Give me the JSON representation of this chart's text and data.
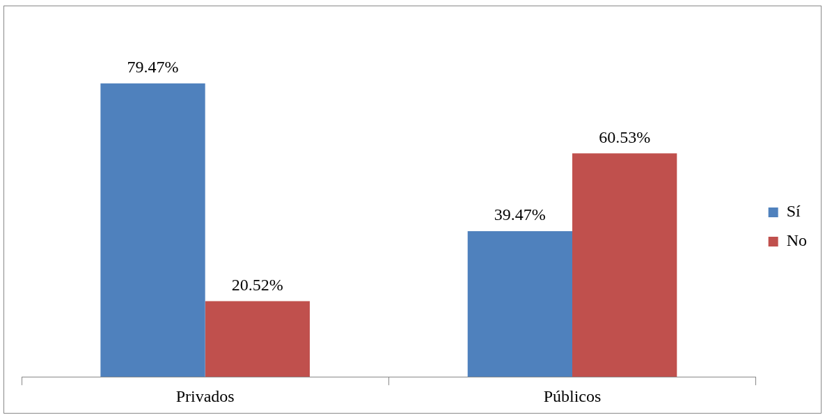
{
  "chart_data": {
    "type": "bar",
    "categories": [
      "Privados",
      "Públicos"
    ],
    "series": [
      {
        "name": "Sí",
        "color": "#4f81bd",
        "values": [
          79.47,
          39.47
        ],
        "value_labels": [
          "79.47%",
          "39.47%"
        ]
      },
      {
        "name": "No",
        "color": "#c0504d",
        "values": [
          20.52,
          60.53
        ],
        "value_labels": [
          "20.52%",
          "60.53%"
        ]
      }
    ],
    "legend": "right",
    "grid": false
  }
}
